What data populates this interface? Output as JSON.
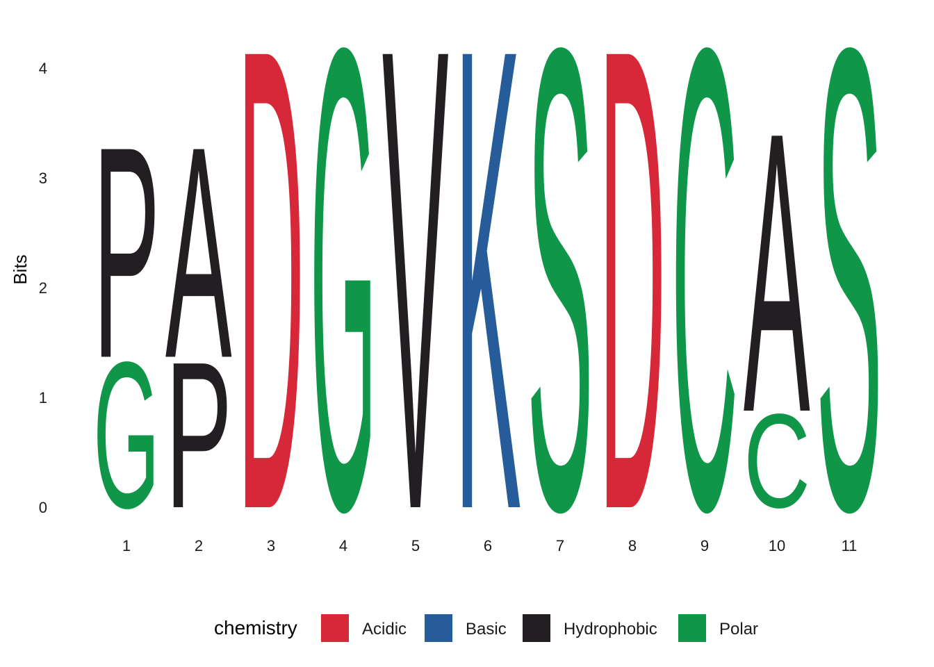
{
  "chart_data": {
    "type": "sequence-logo",
    "title": "",
    "xlabel": "",
    "ylabel": "Bits",
    "ylim": [
      0,
      4.32
    ],
    "yticks": [
      0,
      1,
      2,
      3,
      4
    ],
    "positions": [
      "1",
      "2",
      "3",
      "4",
      "5",
      "6",
      "7",
      "8",
      "9",
      "10",
      "11"
    ],
    "colors": {
      "Acidic": "#D62839",
      "Basic": "#255C99",
      "Hydrophobic": "#221E22",
      "Polar": "#109648"
    },
    "stacks": [
      [
        {
          "letter": "G",
          "bits": 1.37,
          "chemistry": "Polar"
        },
        {
          "letter": "P",
          "bits": 1.98,
          "chemistry": "Hydrophobic"
        }
      ],
      [
        {
          "letter": "P",
          "bits": 1.37,
          "chemistry": "Hydrophobic"
        },
        {
          "letter": "A",
          "bits": 1.98,
          "chemistry": "Hydrophobic"
        }
      ],
      [
        {
          "letter": "D",
          "bits": 4.32,
          "chemistry": "Acidic"
        }
      ],
      [
        {
          "letter": "G",
          "bits": 4.32,
          "chemistry": "Polar"
        }
      ],
      [
        {
          "letter": "V",
          "bits": 4.32,
          "chemistry": "Hydrophobic"
        }
      ],
      [
        {
          "letter": "K",
          "bits": 4.32,
          "chemistry": "Basic"
        }
      ],
      [
        {
          "letter": "S",
          "bits": 4.32,
          "chemistry": "Polar"
        }
      ],
      [
        {
          "letter": "D",
          "bits": 4.32,
          "chemistry": "Acidic"
        }
      ],
      [
        {
          "letter": "C",
          "bits": 4.32,
          "chemistry": "Polar"
        }
      ],
      [
        {
          "letter": "C",
          "bits": 0.88,
          "chemistry": "Polar"
        },
        {
          "letter": "A",
          "bits": 2.62,
          "chemistry": "Hydrophobic"
        }
      ],
      [
        {
          "letter": "S",
          "bits": 4.32,
          "chemistry": "Polar"
        }
      ]
    ]
  },
  "legend": {
    "title": "chemistry",
    "items": [
      {
        "label": "Acidic",
        "color": "#D62839"
      },
      {
        "label": "Basic",
        "color": "#255C99"
      },
      {
        "label": "Hydrophobic",
        "color": "#221E22"
      },
      {
        "label": "Polar",
        "color": "#109648"
      }
    ]
  }
}
